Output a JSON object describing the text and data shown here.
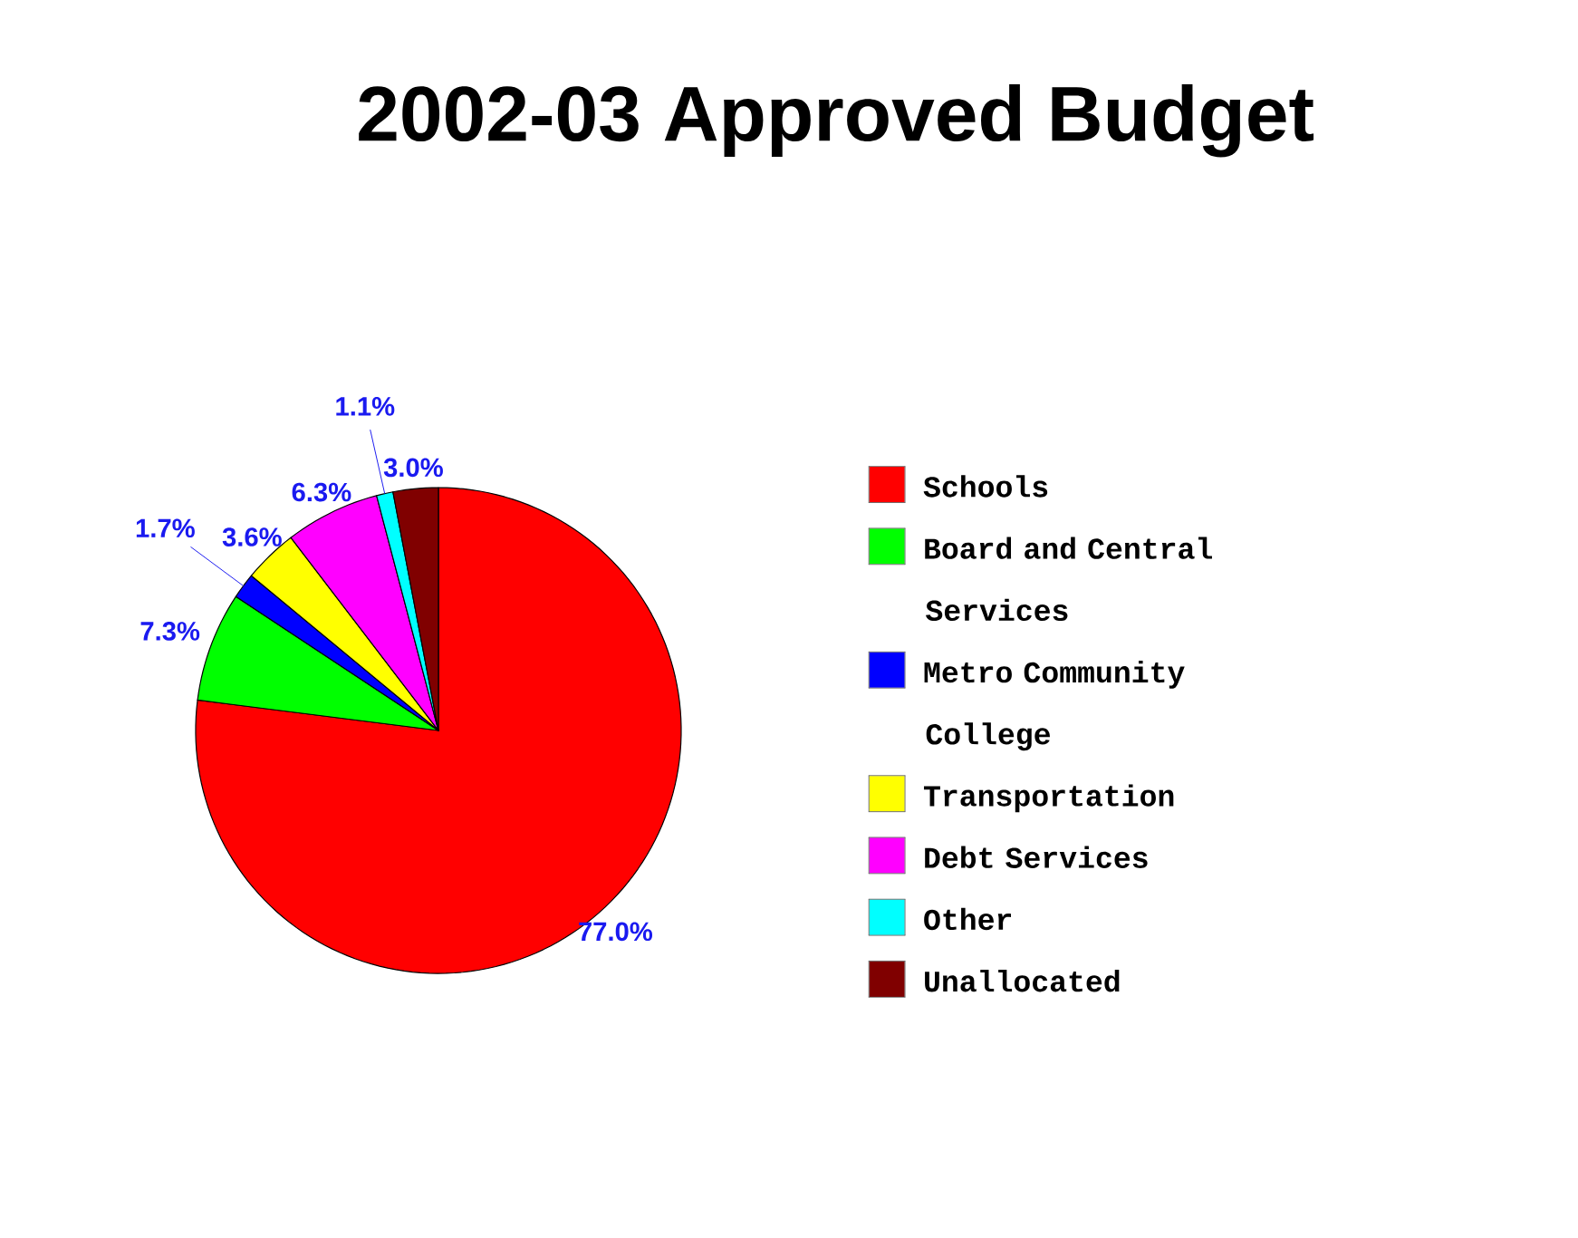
{
  "chart_data": {
    "type": "pie",
    "title": "2002-03 Approved Budget",
    "categories": [
      "Schools",
      "Board and Central Services",
      "Metro Community College",
      "Transportation",
      "Debt Services",
      "Other",
      "Unallocated"
    ],
    "values": [
      77.0,
      7.3,
      1.7,
      3.6,
      6.3,
      1.1,
      3.0
    ],
    "value_labels": [
      "77.0%",
      "7.3%",
      "1.7%",
      "3.6%",
      "6.3%",
      "1.1%",
      "3.0%"
    ],
    "colors": [
      "#ff0000",
      "#00ff00",
      "#0000ff",
      "#ffff00",
      "#ff00ff",
      "#00ffff",
      "#800000"
    ],
    "legend": "right"
  }
}
